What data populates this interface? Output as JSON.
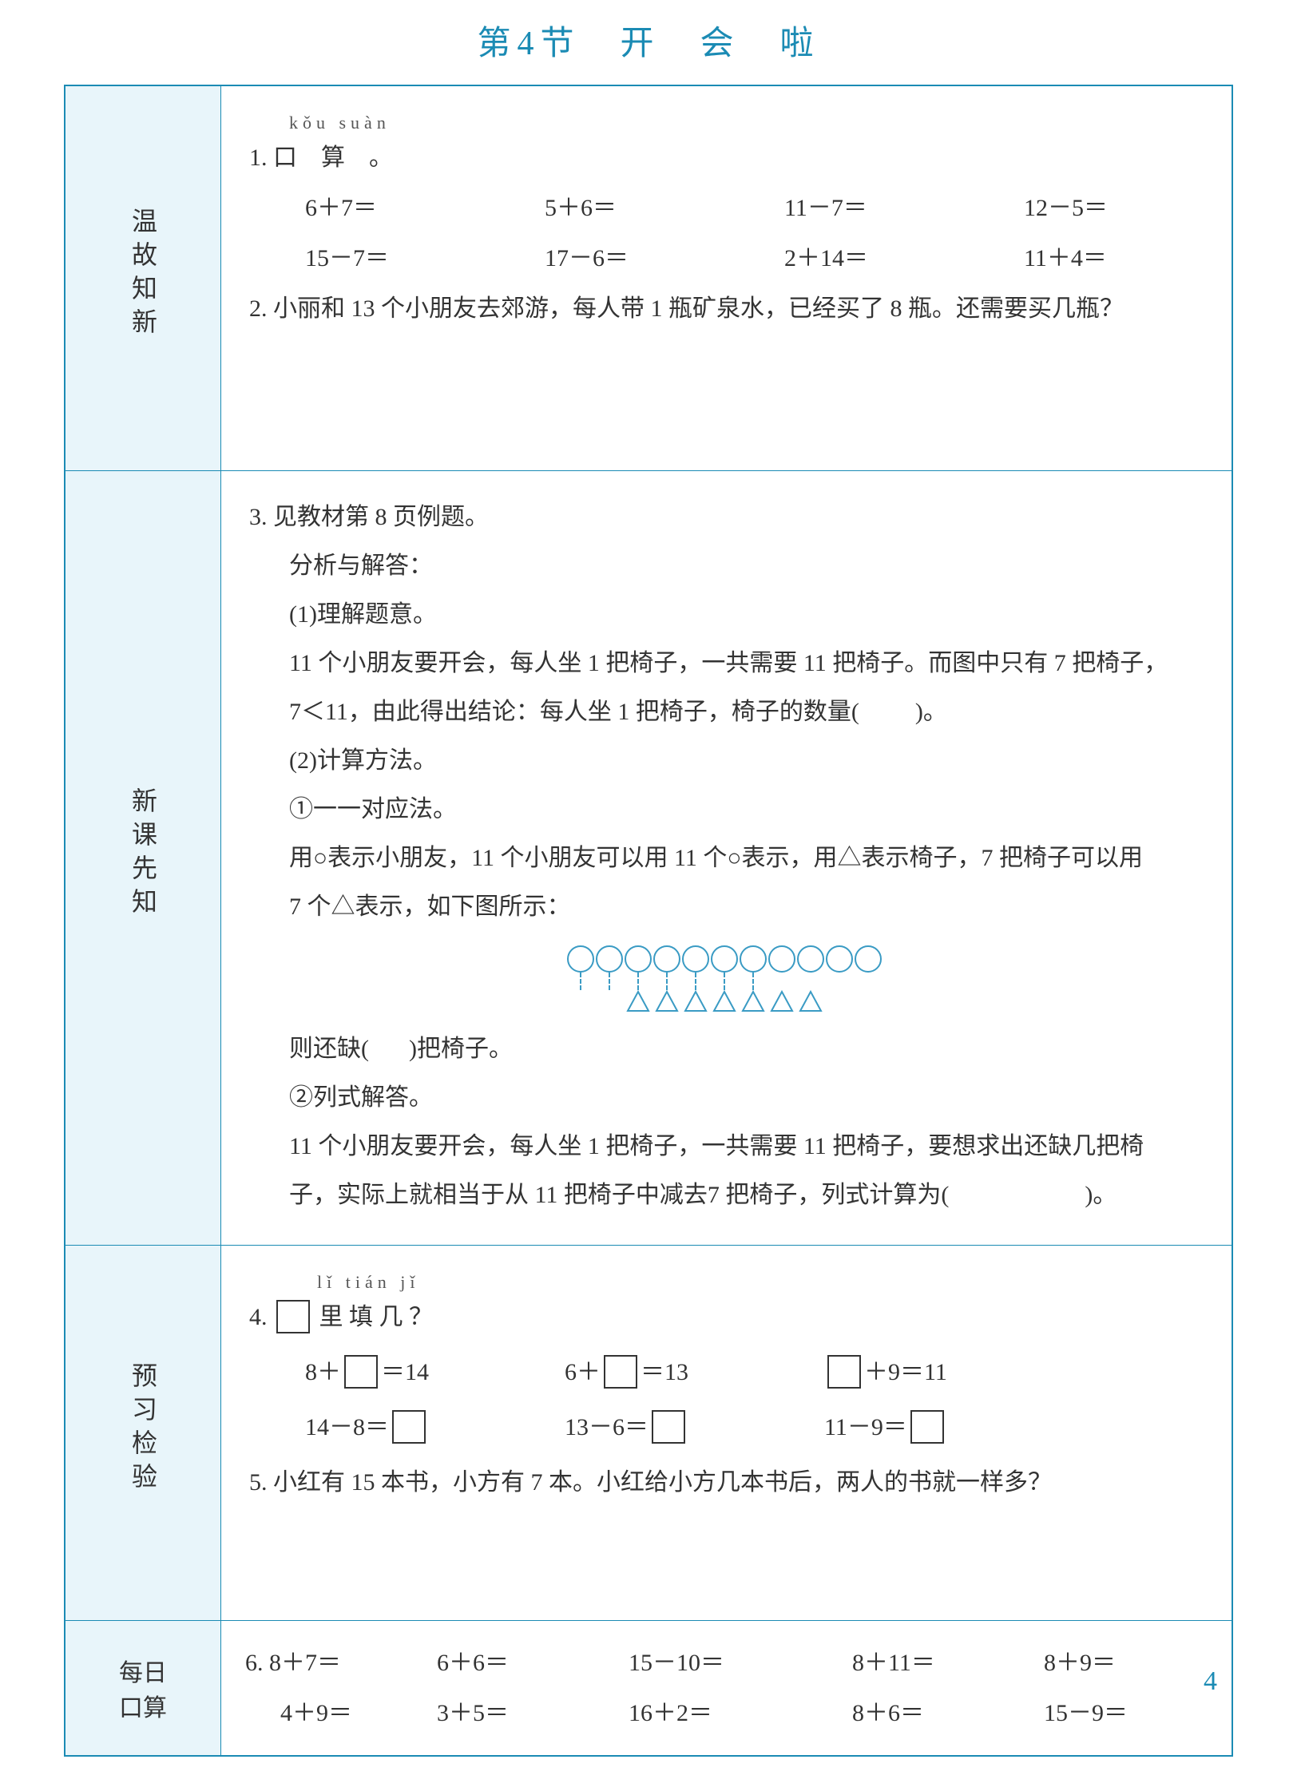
{
  "title": "第4节　开　会　啦",
  "page_number": "4",
  "colors": {
    "border": "#1b8bb4",
    "label_bg": "#e8f5fa",
    "title": "#1b8bb4",
    "shape": "#3a9bc4"
  },
  "sections": {
    "s1": {
      "label": "温故知新",
      "q1_pinyin": "kǒu suàn",
      "q1_title": "1. 口　算　。",
      "q1_rows": [
        [
          "6＋7＝",
          "5＋6＝",
          "11－7＝",
          "12－5＝"
        ],
        [
          "15－7＝",
          "17－6＝",
          "2＋14＝",
          "11＋4＝"
        ]
      ],
      "q2_text": "2. 小丽和 13 个小朋友去郊游，每人带 1 瓶矿泉水，已经买了 8 瓶。还需要买几瓶？"
    },
    "s2": {
      "label": "新课先知",
      "q3_title": "3. 见教材第 8 页例题。",
      "analysis_label": "分析与解答：",
      "p1_label": "(1)理解题意。",
      "p1_line1": "11 个小朋友要开会，每人坐 1 把椅子，一共需要 11 把椅子。而图中只有 7 把椅子，",
      "p1_line2_a": "7＜11，由此得出结论：每人坐 1 把椅子，椅子的数量(",
      "p1_line2_b": ")。",
      "p2_label": "(2)计算方法。",
      "m1_label": "①一一对应法。",
      "m1_line1": "用○表示小朋友，11 个小朋友可以用 11 个○表示，用△表示椅子，7 把椅子可以用",
      "m1_line2": "7 个△表示，如下图所示：",
      "diagram": {
        "circles": 11,
        "triangles": 7,
        "connections": 7
      },
      "m1_conclude_a": "则还缺(",
      "m1_conclude_b": ")把椅子。",
      "m2_label": "②列式解答。",
      "m2_line1": "11 个小朋友要开会，每人坐 1 把椅子，一共需要 11 把椅子，要想求出还缺几把椅",
      "m2_line2_a": "子，实际上就相当于从 11 把椅子中减去7 把椅子，列式计算为(",
      "m2_line2_b": ")。"
    },
    "s3": {
      "label": "预习检验",
      "q4_pinyin": "lǐ tián jǐ",
      "q4_title_a": "4. ",
      "q4_title_b": " 里 填 几 ？",
      "q4_rows": [
        [
          {
            "pre": "8＋",
            "box": true,
            "post": "＝14"
          },
          {
            "pre": "6＋",
            "box": true,
            "post": "＝13"
          },
          {
            "pre": "",
            "box": true,
            "post": "＋9＝11"
          }
        ],
        [
          {
            "pre": "14－8＝",
            "box": true,
            "post": ""
          },
          {
            "pre": "13－6＝",
            "box": true,
            "post": ""
          },
          {
            "pre": "11－9＝",
            "box": true,
            "post": ""
          }
        ]
      ],
      "q5_text": "5. 小红有 15 本书，小方有 7 本。小红给小方几本书后，两人的书就一样多？"
    },
    "s4": {
      "label_line1": "每日",
      "label_line2": "口算",
      "rows": [
        [
          "6. 8＋7＝",
          "6＋6＝",
          "15－10＝",
          "8＋11＝",
          "8＋9＝"
        ],
        [
          "4＋9＝",
          "3＋5＝",
          "16＋2＝",
          "8＋6＝",
          "15－9＝"
        ]
      ]
    }
  }
}
